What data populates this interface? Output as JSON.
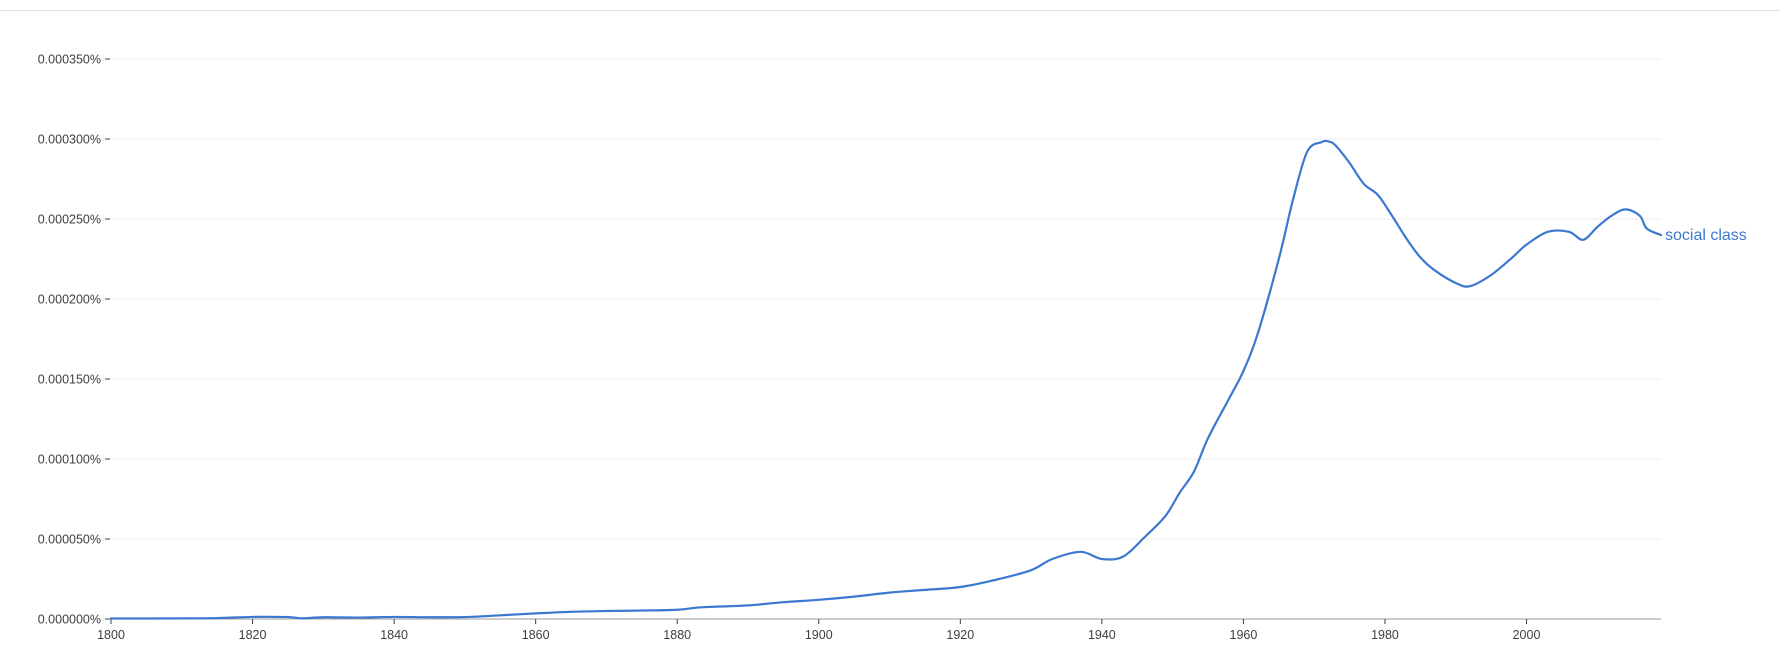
{
  "colors": {
    "series": "#3b78d0",
    "grid": "#eeeeee",
    "axis": "#9e9e9e",
    "tick_text": "#3c4043"
  },
  "chart_data": {
    "type": "line",
    "title": "",
    "xlabel": "",
    "ylabel": "",
    "xlim": [
      1800,
      2019
    ],
    "ylim": [
      0,
      0.00035
    ],
    "grid": true,
    "legend": "end-of-line label",
    "x_ticks": [
      "1800",
      "1820",
      "1840",
      "1860",
      "1880",
      "1900",
      "1920",
      "1940",
      "1960",
      "1980",
      "2000"
    ],
    "x_tick_values": [
      1800,
      1820,
      1840,
      1860,
      1880,
      1900,
      1920,
      1940,
      1960,
      1980,
      2000
    ],
    "y_ticks": [
      "0.000000%",
      "0.000050%",
      "0.000100%",
      "0.000150%",
      "0.000200%",
      "0.000250%",
      "0.000300%",
      "0.000350%"
    ],
    "y_tick_values": [
      0,
      5e-05,
      0.0001,
      0.00015,
      0.0002,
      0.00025,
      0.0003,
      0.00035
    ],
    "series": [
      {
        "name": "social class",
        "points": [
          [
            1800,
            3e-07
          ],
          [
            1805,
            3e-07
          ],
          [
            1810,
            4e-07
          ],
          [
            1815,
            6e-07
          ],
          [
            1820,
            1.3e-06
          ],
          [
            1825,
            1.2e-06
          ],
          [
            1827,
            4e-07
          ],
          [
            1830,
            1.1e-06
          ],
          [
            1835,
            9e-07
          ],
          [
            1840,
            1.3e-06
          ],
          [
            1845,
            1.1e-06
          ],
          [
            1850,
            1.2e-06
          ],
          [
            1855,
            2.3e-06
          ],
          [
            1860,
            3.5e-06
          ],
          [
            1865,
            4.5e-06
          ],
          [
            1870,
            5e-06
          ],
          [
            1875,
            5.3e-06
          ],
          [
            1880,
            5.8e-06
          ],
          [
            1883,
            7.2e-06
          ],
          [
            1886,
            7.8e-06
          ],
          [
            1890,
            8.5e-06
          ],
          [
            1895,
            1.05e-05
          ],
          [
            1900,
            1.2e-05
          ],
          [
            1905,
            1.4e-05
          ],
          [
            1910,
            1.65e-05
          ],
          [
            1915,
            1.82e-05
          ],
          [
            1920,
            2e-05
          ],
          [
            1925,
            2.45e-05
          ],
          [
            1930,
            3.05e-05
          ],
          [
            1933,
            3.75e-05
          ],
          [
            1937,
            4.2e-05
          ],
          [
            1940,
            3.75e-05
          ],
          [
            1943,
            3.9e-05
          ],
          [
            1946,
            5.1e-05
          ],
          [
            1949,
            6.45e-05
          ],
          [
            1951,
            7.9e-05
          ],
          [
            1953,
            9.2e-05
          ],
          [
            1955,
            0.000113
          ],
          [
            1958,
            0.000138
          ],
          [
            1960,
            0.000155
          ],
          [
            1962,
            0.000178
          ],
          [
            1965,
            0.000225
          ],
          [
            1967,
            0.000262
          ],
          [
            1969,
            0.000292
          ],
          [
            1971,
            0.000298
          ],
          [
            1972,
            0.0002985
          ],
          [
            1973,
            0.000296
          ],
          [
            1975,
            0.000285
          ],
          [
            1977,
            0.000272
          ],
          [
            1979,
            0.000265
          ],
          [
            1981,
            0.000252
          ],
          [
            1983,
            0.000238
          ],
          [
            1985,
            0.000226
          ],
          [
            1987,
            0.000218
          ],
          [
            1990,
            0.00021
          ],
          [
            1992,
            0.000208
          ],
          [
            1995,
            0.000215
          ],
          [
            1998,
            0.000226
          ],
          [
            2000,
            0.000234
          ],
          [
            2003,
            0.000242
          ],
          [
            2006,
            0.000242
          ],
          [
            2008,
            0.000237
          ],
          [
            2010,
            0.000245
          ],
          [
            2012,
            0.000252
          ],
          [
            2014,
            0.000256
          ],
          [
            2016,
            0.000252
          ],
          [
            2017,
            0.000244
          ],
          [
            2019,
            0.00024
          ]
        ]
      }
    ]
  }
}
